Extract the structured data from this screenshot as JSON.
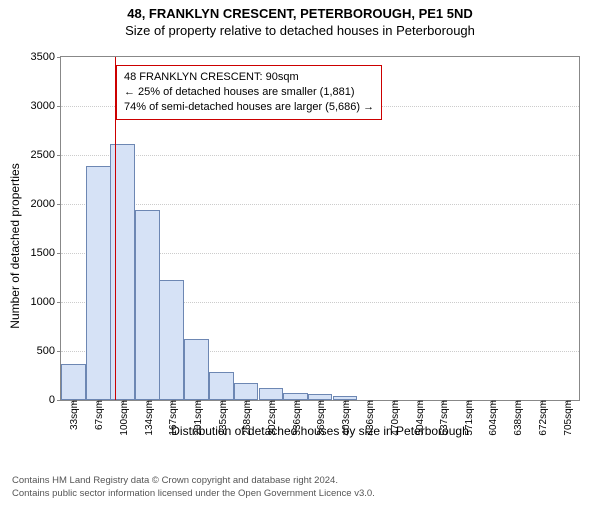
{
  "title": {
    "line1": "48, FRANKLYN CRESCENT, PETERBOROUGH, PE1 5ND",
    "line2": "Size of property relative to detached houses in Peterborough"
  },
  "axes": {
    "ylabel": "Number of detached properties",
    "xlabel": "Distribution of detached houses by size in Peterborough",
    "ymax": 3500,
    "ytick_step": 500,
    "yticks": [
      0,
      500,
      1000,
      1500,
      2000,
      2500,
      3000,
      3500
    ],
    "xticks": [
      "33sqm",
      "67sqm",
      "100sqm",
      "134sqm",
      "167sqm",
      "201sqm",
      "235sqm",
      "268sqm",
      "302sqm",
      "336sqm",
      "369sqm",
      "403sqm",
      "436sqm",
      "470sqm",
      "504sqm",
      "537sqm",
      "571sqm",
      "604sqm",
      "638sqm",
      "672sqm",
      "705sqm"
    ]
  },
  "chart": {
    "type": "histogram",
    "bar_fill": "#d6e2f6",
    "bar_stroke": "#6d87b3",
    "grid_color": "#cccccc",
    "border_color": "#888888",
    "background_color": "#ffffff",
    "marker_color": "#cc0000",
    "marker_at_sqm": 90,
    "xmin": 16,
    "xmax": 722,
    "bar_width_sqm": 33.6,
    "values": [
      370,
      2390,
      2610,
      1940,
      1220,
      620,
      290,
      170,
      120,
      75,
      65,
      45,
      0,
      0,
      0,
      0,
      0,
      0,
      0,
      0,
      0
    ]
  },
  "annotation": {
    "line1": "48 FRANKLYN CRESCENT: 90sqm",
    "line2": "← 25% of detached houses are smaller (1,881)",
    "line3": "74% of semi-detached houses are larger (5,686) →",
    "border_color": "#cc0000"
  },
  "footer": {
    "line1": "Contains HM Land Registry data © Crown copyright and database right 2024.",
    "line2": "Contains public sector information licensed under the Open Government Licence v3.0."
  }
}
